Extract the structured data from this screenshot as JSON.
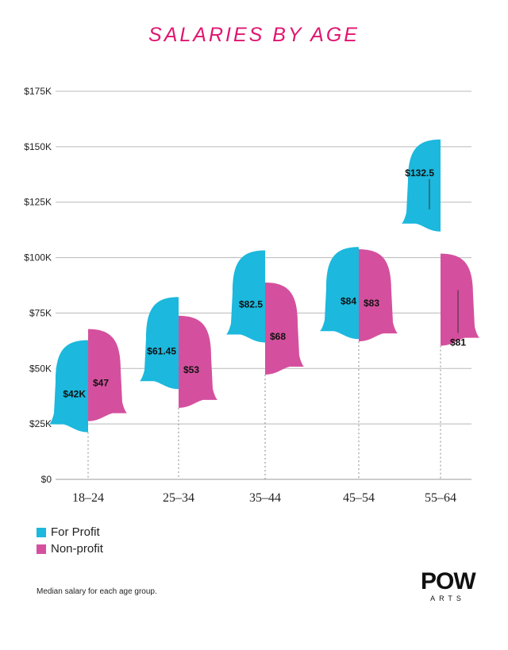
{
  "chart_data": {
    "type": "bar",
    "title": "SALARIES BY AGE",
    "categories": [
      "18–24",
      "25–34",
      "35–44",
      "45–54",
      "55–64"
    ],
    "y_tick_labels": [
      "$0",
      "$25K",
      "$50K",
      "$75K",
      "$100K",
      "$125K",
      "$150K",
      "$175K"
    ],
    "y_ticks": [
      0,
      25,
      50,
      75,
      100,
      125,
      150,
      175
    ],
    "ylim": [
      0,
      175
    ],
    "grid": true,
    "legend_position": "bottom-left",
    "series": [
      {
        "name": "For Profit",
        "color": "#1cb8dd",
        "values": [
          42,
          61.45,
          82.5,
          84,
          132.5
        ],
        "labels": [
          "$42K",
          "$61.45",
          "$82.5",
          "$84",
          "$132.5"
        ]
      },
      {
        "name": "Non-profit",
        "color": "#d4509e",
        "values": [
          47,
          53,
          68,
          83,
          81
        ],
        "labels": [
          "$47",
          "$53",
          "$68",
          "$83",
          "$81"
        ]
      }
    ]
  },
  "legend": {
    "for_profit": "For Profit",
    "non_profit": "Non-profit"
  },
  "note": "Median salary for each age group.",
  "logo": {
    "main": "POW",
    "sub": "ARTS"
  },
  "colors": {
    "title": "#e0156f",
    "for_profit": "#1cb8dd",
    "non_profit": "#d4509e"
  }
}
